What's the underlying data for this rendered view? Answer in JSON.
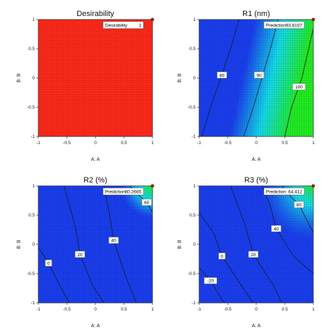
{
  "chart_data": [
    {
      "type": "heatmap",
      "title": "Desirability",
      "xlabel": "A: A",
      "ylabel": "B: B",
      "xlim": [
        -1,
        1
      ],
      "ylim": [
        -1,
        1
      ],
      "xticks": [
        "-1",
        "-0.5",
        "0",
        "0.5",
        "1"
      ],
      "yticks": [
        "-1",
        "-0.5",
        "0",
        "0.5",
        "1"
      ],
      "grid": true,
      "prediction": {
        "label": "Desirability",
        "value": "1",
        "x": 1,
        "y": 1
      },
      "contours": [],
      "colors": {
        "fill": "#ff2a1a",
        "low": "#1a3ff0",
        "high": "#22ee22"
      }
    },
    {
      "type": "heatmap",
      "title": "R1 (nm)",
      "xlabel": "A: A",
      "ylabel": "B: B",
      "xlim": [
        -1,
        1
      ],
      "ylim": [
        -1,
        1
      ],
      "xticks": [
        "-1",
        "-0.5",
        "0",
        "0.5",
        "1"
      ],
      "yticks": [
        "-1",
        "-0.5",
        "0",
        "0.5",
        "1"
      ],
      "grid": true,
      "prediction": {
        "label": "Prediction",
        "value": "93.8107",
        "x": 1,
        "y": 1
      },
      "contours": [
        {
          "label": "80",
          "label_at": [
            -0.6,
            0.05
          ]
        },
        {
          "label": "90",
          "label_at": [
            0.05,
            0.05
          ]
        },
        {
          "label": "100",
          "label_at": [
            0.75,
            -0.15
          ]
        }
      ]
    },
    {
      "type": "heatmap",
      "title": "R2 (%)",
      "xlabel": "A: A",
      "ylabel": "B: B",
      "xlim": [
        -1,
        1
      ],
      "ylim": [
        -1,
        1
      ],
      "xticks": [
        "-1",
        "-0.5",
        "0",
        "0.5",
        "1"
      ],
      "yticks": [
        "-1",
        "-0.5",
        "0",
        "0.5",
        "1"
      ],
      "grid": true,
      "prediction": {
        "label": "Prediction",
        "value": "60.2665",
        "x": 1,
        "y": 1
      },
      "contours": [
        {
          "label": "0",
          "label_at": [
            -0.82,
            -0.32
          ]
        },
        {
          "label": "20",
          "label_at": [
            -0.27,
            -0.17
          ]
        },
        {
          "label": "40",
          "label_at": [
            0.32,
            0.07
          ]
        },
        {
          "label": "60",
          "label_at": [
            0.9,
            0.72
          ]
        }
      ]
    },
    {
      "type": "heatmap",
      "title": "R3 (%)",
      "xlabel": "A: A",
      "ylabel": "B: B",
      "xlim": [
        -1,
        1
      ],
      "ylim": [
        -1,
        1
      ],
      "xticks": [
        "-1",
        "-0.5",
        "0",
        "0.5",
        "1"
      ],
      "yticks": [
        "-1",
        "-0.5",
        "0",
        "0.5",
        "1"
      ],
      "grid": true,
      "prediction": {
        "label": "Prediction",
        "value": "64.412",
        "x": 1,
        "y": 1
      },
      "contours": [
        {
          "label": "-20",
          "label_at": [
            -0.8,
            -0.62
          ]
        },
        {
          "label": "0",
          "label_at": [
            -0.6,
            -0.2
          ]
        },
        {
          "label": "20",
          "label_at": [
            -0.05,
            -0.17
          ]
        },
        {
          "label": "40",
          "label_at": [
            0.35,
            0.27
          ]
        },
        {
          "label": "60",
          "label_at": [
            0.75,
            0.68
          ]
        }
      ]
    }
  ]
}
